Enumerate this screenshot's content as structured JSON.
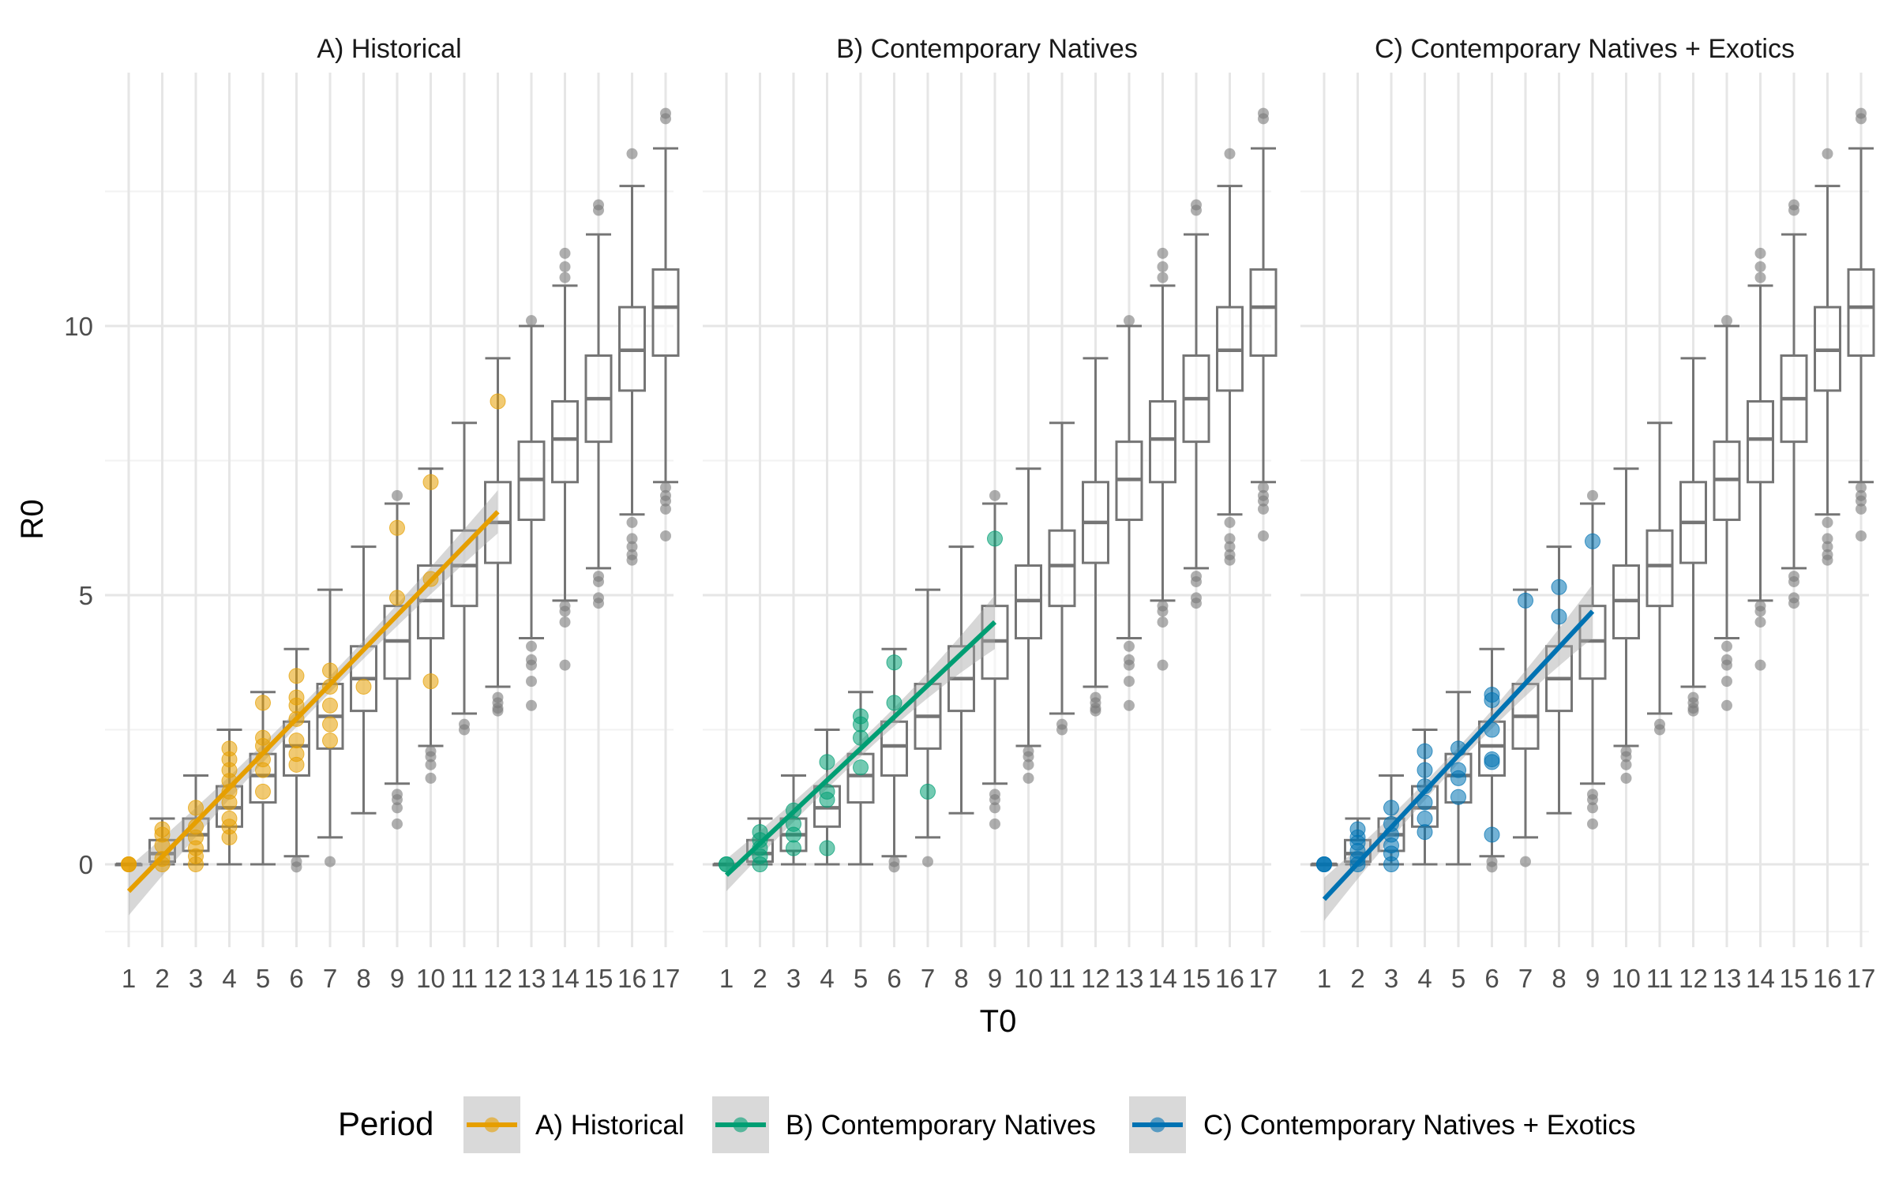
{
  "chart_data": {
    "type": "boxplot with points and linear fit",
    "xlabel": "T0",
    "ylabel": "R0",
    "x_categories": [
      "1",
      "2",
      "3",
      "4",
      "5",
      "6",
      "7",
      "8",
      "9",
      "10",
      "11",
      "12",
      "13",
      "14",
      "15",
      "16",
      "17"
    ],
    "yticks": [
      0,
      5,
      10
    ],
    "ylim": [
      -1.6,
      14.2
    ],
    "grid": true,
    "boxes": [
      {
        "x": 1,
        "lower": 0,
        "q1": 0,
        "median": 0,
        "q3": 0,
        "upper": 0,
        "outliers": []
      },
      {
        "x": 2,
        "lower": 0,
        "q1": 0.05,
        "median": 0.2,
        "q3": 0.45,
        "upper": 0.85,
        "outliers": []
      },
      {
        "x": 3,
        "lower": 0,
        "q1": 0.25,
        "median": 0.55,
        "q3": 0.85,
        "upper": 1.65,
        "outliers": []
      },
      {
        "x": 4,
        "lower": 0,
        "q1": 0.7,
        "median": 1.05,
        "q3": 1.45,
        "upper": 2.5,
        "outliers": []
      },
      {
        "x": 5,
        "lower": 0,
        "q1": 1.15,
        "median": 1.65,
        "q3": 2.05,
        "upper": 3.2,
        "outliers": []
      },
      {
        "x": 6,
        "lower": 0.15,
        "q1": 1.65,
        "median": 2.2,
        "q3": 2.65,
        "upper": 4.0,
        "outliers": [
          0.05,
          -0.05
        ]
      },
      {
        "x": 7,
        "lower": 0.5,
        "q1": 2.15,
        "median": 2.75,
        "q3": 3.35,
        "upper": 5.1,
        "outliers": [
          0.05
        ]
      },
      {
        "x": 8,
        "lower": 0.95,
        "q1": 2.85,
        "median": 3.45,
        "q3": 4.05,
        "upper": 5.9,
        "outliers": []
      },
      {
        "x": 9,
        "lower": 1.5,
        "q1": 3.45,
        "median": 4.15,
        "q3": 4.8,
        "upper": 6.7,
        "outliers": [
          1.3,
          1.2,
          1.05,
          0.75,
          6.85
        ]
      },
      {
        "x": 10,
        "lower": 2.2,
        "q1": 4.2,
        "median": 4.9,
        "q3": 5.55,
        "upper": 7.35,
        "outliers": [
          2.0,
          1.85,
          1.6,
          2.1
        ]
      },
      {
        "x": 11,
        "lower": 2.8,
        "q1": 4.8,
        "median": 5.55,
        "q3": 6.2,
        "upper": 8.2,
        "outliers": [
          2.6,
          2.5
        ]
      },
      {
        "x": 12,
        "lower": 3.3,
        "q1": 5.6,
        "median": 6.35,
        "q3": 7.1,
        "upper": 9.4,
        "outliers": [
          3.1,
          3.0,
          2.9,
          2.85
        ]
      },
      {
        "x": 13,
        "lower": 4.2,
        "q1": 6.4,
        "median": 7.15,
        "q3": 7.85,
        "upper": 10.0,
        "outliers": [
          4.05,
          3.8,
          3.7,
          3.4,
          2.95,
          10.1
        ]
      },
      {
        "x": 14,
        "lower": 4.9,
        "q1": 7.1,
        "median": 7.9,
        "q3": 8.6,
        "upper": 10.75,
        "outliers": [
          4.8,
          4.7,
          4.5,
          3.7,
          10.9,
          11.1,
          11.35
        ]
      },
      {
        "x": 15,
        "lower": 5.5,
        "q1": 7.85,
        "median": 8.65,
        "q3": 9.45,
        "upper": 11.7,
        "outliers": [
          5.35,
          5.25,
          4.95,
          4.85,
          12.15,
          12.25
        ]
      },
      {
        "x": 16,
        "lower": 6.5,
        "q1": 8.8,
        "median": 9.55,
        "q3": 10.35,
        "upper": 12.6,
        "outliers": [
          6.35,
          6.05,
          5.9,
          5.75,
          5.65,
          13.2
        ]
      },
      {
        "x": 17,
        "lower": 7.1,
        "q1": 9.45,
        "median": 10.35,
        "q3": 11.05,
        "upper": 13.3,
        "outliers": [
          7.0,
          6.85,
          6.75,
          6.6,
          6.1,
          13.85,
          13.95
        ]
      }
    ],
    "panels": [
      {
        "title": "A) Historical",
        "color": "#E69F00",
        "points": [
          [
            1,
            0
          ],
          [
            1,
            0
          ],
          [
            1,
            0
          ],
          [
            2,
            0.55
          ],
          [
            2,
            0.65
          ],
          [
            2,
            0.35
          ],
          [
            2,
            0.1
          ],
          [
            2,
            0.0
          ],
          [
            3,
            1.05
          ],
          [
            3,
            0.7
          ],
          [
            3,
            0.5
          ],
          [
            3,
            0.3
          ],
          [
            3,
            0.15
          ],
          [
            3,
            0.0
          ],
          [
            4,
            2.15
          ],
          [
            4,
            1.95
          ],
          [
            4,
            1.75
          ],
          [
            4,
            1.55
          ],
          [
            4,
            1.35
          ],
          [
            4,
            1.15
          ],
          [
            4,
            0.85
          ],
          [
            4,
            0.7
          ],
          [
            4,
            0.5
          ],
          [
            5,
            3.0
          ],
          [
            5,
            2.35
          ],
          [
            5,
            2.2
          ],
          [
            5,
            1.95
          ],
          [
            5,
            1.75
          ],
          [
            5,
            1.35
          ],
          [
            6,
            3.5
          ],
          [
            6,
            3.1
          ],
          [
            6,
            2.95
          ],
          [
            6,
            2.7
          ],
          [
            6,
            2.3
          ],
          [
            6,
            2.05
          ],
          [
            6,
            1.85
          ],
          [
            7,
            3.6
          ],
          [
            7,
            3.3
          ],
          [
            7,
            2.95
          ],
          [
            7,
            2.6
          ],
          [
            7,
            2.3
          ],
          [
            8,
            3.3
          ],
          [
            9,
            6.25
          ],
          [
            9,
            4.95
          ],
          [
            10,
            7.1
          ],
          [
            10,
            5.3
          ],
          [
            10,
            3.4
          ],
          [
            12,
            8.6
          ]
        ],
        "fit": {
          "x_start": 1,
          "x_end": 12,
          "y_start": -0.5,
          "y_end": 6.55,
          "se_start": 0.45,
          "se_end": 0.4,
          "se_mid": 0.15
        }
      },
      {
        "title": "B) Contemporary Natives",
        "color": "#009E73",
        "points": [
          [
            1,
            0
          ],
          [
            1,
            0
          ],
          [
            2,
            0.6
          ],
          [
            2,
            0.45
          ],
          [
            2,
            0.3
          ],
          [
            2,
            0.15
          ],
          [
            2,
            0.0
          ],
          [
            3,
            1.0
          ],
          [
            3,
            0.75
          ],
          [
            3,
            0.55
          ],
          [
            3,
            0.3
          ],
          [
            4,
            1.9
          ],
          [
            4,
            1.35
          ],
          [
            4,
            1.2
          ],
          [
            4,
            0.3
          ],
          [
            5,
            2.75
          ],
          [
            5,
            2.6
          ],
          [
            5,
            2.35
          ],
          [
            5,
            1.8
          ],
          [
            6,
            3.75
          ],
          [
            6,
            3.0
          ],
          [
            7,
            1.35
          ],
          [
            9,
            6.05
          ]
        ],
        "fit": {
          "x_start": 1,
          "x_end": 9,
          "y_start": -0.2,
          "y_end": 4.5,
          "se_start": 0.3,
          "se_end": 0.5,
          "se_mid": 0.15
        }
      },
      {
        "title": "C) Contemporary Natives + Exotics",
        "color": "#0072B2",
        "points": [
          [
            1,
            0
          ],
          [
            1,
            0
          ],
          [
            1,
            0
          ],
          [
            2,
            0.65
          ],
          [
            2,
            0.5
          ],
          [
            2,
            0.4
          ],
          [
            2,
            0.25
          ],
          [
            2,
            0.1
          ],
          [
            2,
            0.0
          ],
          [
            3,
            1.05
          ],
          [
            3,
            0.75
          ],
          [
            3,
            0.55
          ],
          [
            3,
            0.35
          ],
          [
            3,
            0.2
          ],
          [
            3,
            0.0
          ],
          [
            4,
            2.1
          ],
          [
            4,
            1.75
          ],
          [
            4,
            1.45
          ],
          [
            4,
            1.15
          ],
          [
            4,
            0.85
          ],
          [
            4,
            0.6
          ],
          [
            5,
            2.15
          ],
          [
            5,
            1.75
          ],
          [
            5,
            1.6
          ],
          [
            5,
            1.25
          ],
          [
            6,
            3.15
          ],
          [
            6,
            3.05
          ],
          [
            6,
            2.5
          ],
          [
            6,
            1.95
          ],
          [
            6,
            1.9
          ],
          [
            6,
            0.55
          ],
          [
            7,
            4.9
          ],
          [
            8,
            5.15
          ],
          [
            8,
            4.6
          ],
          [
            9,
            6.0
          ]
        ],
        "fit": {
          "x_start": 1,
          "x_end": 9,
          "y_start": -0.65,
          "y_end": 4.7,
          "se_start": 0.4,
          "se_end": 0.5,
          "se_mid": 0.15
        }
      }
    ],
    "legend": {
      "title": "Period",
      "position": "bottom",
      "entries": [
        "A) Historical",
        "B) Contemporary Natives",
        "C) Contemporary Natives + Exotics"
      ]
    }
  }
}
